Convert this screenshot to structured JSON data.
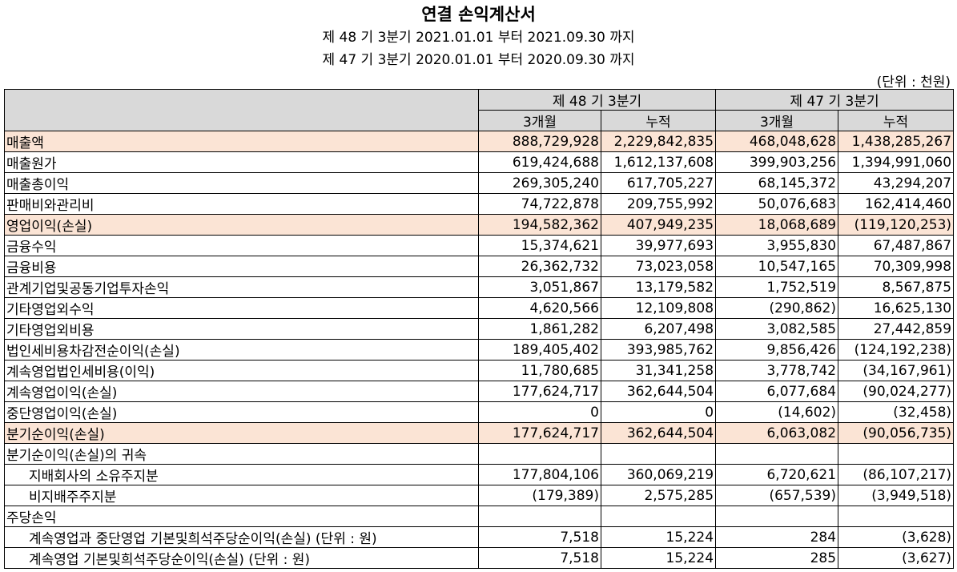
{
  "title": "연결 손익계산서",
  "periods": [
    "제 48 기 3분기 2021.01.01 부터 2021.09.30 까지",
    "제 47 기 3분기 2020.01.01 부터 2020.09.30 까지"
  ],
  "unit": "(단위 : 천원)",
  "header": {
    "period1": "제 48 기 3분기",
    "period2": "제 47 기 3분기",
    "sub": [
      "3개월",
      "누적",
      "3개월",
      "누적"
    ]
  },
  "rows": [
    {
      "label": "매출액",
      "values": [
        "888,729,928",
        "2,229,842,835",
        "468,048,628",
        "1,438,285,267"
      ]
    },
    {
      "label": "매출원가",
      "values": [
        "619,424,688",
        "1,612,137,608",
        "399,903,256",
        "1,394,991,060"
      ]
    },
    {
      "label": "매출총이익",
      "values": [
        "269,305,240",
        "617,705,227",
        "68,145,372",
        "43,294,207"
      ]
    },
    {
      "label": "판매비와관리비",
      "values": [
        "74,722,878",
        "209,755,992",
        "50,076,683",
        "162,414,460"
      ]
    },
    {
      "label": "영업이익(손실)",
      "values": [
        "194,582,362",
        "407,949,235",
        "18,068,689",
        "(119,120,253)"
      ]
    },
    {
      "label": "금융수익",
      "values": [
        "15,374,621",
        "39,977,693",
        "3,955,830",
        "67,487,867"
      ]
    },
    {
      "label": "금융비용",
      "values": [
        "26,362,732",
        "73,023,058",
        "10,547,165",
        "70,309,998"
      ]
    },
    {
      "label": "관계기업및공동기업투자손익",
      "values": [
        "3,051,867",
        "13,179,582",
        "1,752,519",
        "8,567,875"
      ]
    },
    {
      "label": "기타영업외수익",
      "values": [
        "4,620,566",
        "12,109,808",
        "(290,862)",
        "16,625,130"
      ]
    },
    {
      "label": "기타영업외비용",
      "values": [
        "1,861,282",
        "6,207,498",
        "3,082,585",
        "27,442,859"
      ]
    },
    {
      "label": "법인세비용차감전순이익(손실)",
      "values": [
        "189,405,402",
        "393,985,762",
        "9,856,426",
        "(124,192,238)"
      ]
    },
    {
      "label": "계속영업법인세비용(이익)",
      "values": [
        "11,780,685",
        "31,341,258",
        "3,778,742",
        "(34,167,961)"
      ]
    },
    {
      "label": "계속영업이익(손실)",
      "values": [
        "177,624,717",
        "362,644,504",
        "6,077,684",
        "(90,024,277)"
      ]
    },
    {
      "label": "중단영업이익(손실)",
      "values": [
        "0",
        "0",
        "(14,602)",
        "(32,458)"
      ]
    },
    {
      "label": "분기순이익(손실)",
      "values": [
        "177,624,717",
        "362,644,504",
        "6,063,082",
        "(90,056,735)"
      ]
    },
    {
      "label": "분기순이익(손실)의 귀속",
      "values": [
        "",
        "",
        "",
        ""
      ]
    },
    {
      "label": "지배회사의 소유주지분",
      "values": [
        "177,804,106",
        "360,069,219",
        "6,720,621",
        "(86,107,217)"
      ]
    },
    {
      "label": "비지배주주지분",
      "values": [
        "(179,389)",
        "2,575,285",
        "(657,539)",
        "(3,949,518)"
      ]
    },
    {
      "label": "주당손익",
      "values": [
        "",
        "",
        "",
        ""
      ]
    },
    {
      "label": "계속영업과 중단영업 기본및희석주당순이익(손실) (단위 : 원)",
      "values": [
        "7,518",
        "15,224",
        "284",
        "(3,628)"
      ]
    },
    {
      "label": "계속영업 기본및희석주당순이익(손실) (단위 : 원)",
      "values": [
        "7,518",
        "15,224",
        "285",
        "(3,627)"
      ]
    }
  ],
  "colors": {
    "header_bg": "#d9d9d9",
    "highlight_bg": "#fbe4d5"
  }
}
